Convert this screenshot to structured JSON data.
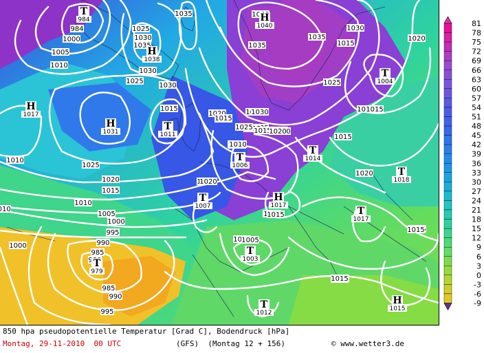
{
  "map": {
    "isobars": [
      {
        "label": "984"
      },
      {
        "label": "1000"
      },
      {
        "label": "1005"
      },
      {
        "label": "1010"
      },
      {
        "label": "1035"
      },
      {
        "label": "1025"
      },
      {
        "label": "1030"
      },
      {
        "label": "1035"
      },
      {
        "label": "1030"
      },
      {
        "label": "1040"
      },
      {
        "label": "1035"
      },
      {
        "label": "1035"
      },
      {
        "label": "1030"
      },
      {
        "label": "1020"
      },
      {
        "label": "1015"
      },
      {
        "label": "1025"
      },
      {
        "label": "1025"
      },
      {
        "label": "1030"
      },
      {
        "label": "1015"
      },
      {
        "label": "1020"
      },
      {
        "label": "1015"
      },
      {
        "label": "1030"
      },
      {
        "label": "1025"
      },
      {
        "label": "1020"
      },
      {
        "label": "1015"
      },
      {
        "label": "1010"
      },
      {
        "label": "1015"
      },
      {
        "label": "1010"
      },
      {
        "label": "1025"
      },
      {
        "label": "1020"
      },
      {
        "label": "1015"
      },
      {
        "label": "1010"
      },
      {
        "label": "1005"
      },
      {
        "label": "1000"
      },
      {
        "label": "995"
      },
      {
        "label": "990"
      },
      {
        "label": "985"
      },
      {
        "label": "980"
      },
      {
        "label": "985"
      },
      {
        "label": "990"
      },
      {
        "label": "995"
      },
      {
        "label": "1000"
      },
      {
        "label": "1010"
      },
      {
        "label": "1010"
      },
      {
        "label": "1015"
      },
      {
        "label": "1005"
      },
      {
        "label": "1015"
      },
      {
        "label": "1015"
      },
      {
        "label": "1020"
      },
      {
        "label": "1015"
      },
      {
        "label": "1015"
      },
      {
        "label": "1015"
      },
      {
        "label": "1010"
      },
      {
        "label": "1020"
      },
      {
        "label": "1015"
      },
      {
        "label": "1005"
      },
      {
        "label": "1020"
      },
      {
        "label": "1015"
      },
      {
        "label": "1015"
      },
      {
        "label": "1015"
      },
      {
        "label": "1025"
      },
      {
        "label": "1015"
      },
      {
        "label": "1020"
      },
      {
        "label": "1010"
      },
      {
        "label": "1015"
      },
      {
        "label": "1030"
      }
    ],
    "pressure_systems": [
      {
        "type": "T",
        "value": "984"
      },
      {
        "type": "H",
        "value": "1038"
      },
      {
        "type": "H",
        "value": "1040"
      },
      {
        "type": "H",
        "value": "1017"
      },
      {
        "type": "H",
        "value": "1031"
      },
      {
        "type": "T",
        "value": "1011"
      },
      {
        "type": "T",
        "value": "1004"
      },
      {
        "type": "T",
        "value": "1014"
      },
      {
        "type": "T",
        "value": "1006"
      },
      {
        "type": "T",
        "value": "1007"
      },
      {
        "type": "H",
        "value": "1017"
      },
      {
        "type": "T",
        "value": "1018"
      },
      {
        "type": "T",
        "value": "1017"
      },
      {
        "type": "T",
        "value": "979"
      },
      {
        "type": "T",
        "value": "1003"
      },
      {
        "type": "T",
        "value": "1012"
      },
      {
        "type": "H",
        "value": "1015"
      }
    ]
  },
  "colorbar": {
    "labels": [
      "81",
      "78",
      "75",
      "72",
      "69",
      "66",
      "63",
      "60",
      "57",
      "54",
      "51",
      "48",
      "45",
      "42",
      "39",
      "36",
      "33",
      "30",
      "27",
      "24",
      "21",
      "18",
      "15",
      "12",
      "9",
      "6",
      "3",
      "0",
      "-3",
      "-6",
      "-9"
    ],
    "colors": [
      "#e8109a",
      "#d81fa8",
      "#c42db6",
      "#b03bc4",
      "#9c49d2",
      "#8a4fd8",
      "#7c55df",
      "#6c57e2",
      "#5a5ae5",
      "#4a5de8",
      "#4063ea",
      "#3869ec",
      "#2f74ed",
      "#2880ee",
      "#218cec",
      "#1b98e8",
      "#18a4e2",
      "#17b0da",
      "#18bccf",
      "#1cc6c1",
      "#23cdb1",
      "#2cd3a0",
      "#3ad88d",
      "#4bdb78",
      "#60dd62",
      "#7bdd4c",
      "#96db3c",
      "#b2d630",
      "#ccd029",
      "#e2c824",
      "#f0bd22"
    ],
    "arrow_colors": [
      "#ea2fa3",
      "#6a2c8a"
    ]
  },
  "footer": {
    "line1": "850 hpa pseudopotentielle Temperatur [Grad C], Bodendruck [hPa]",
    "line2_date": "Montag, 29-11-2010  00 UTC",
    "line2_model": "(GFS)  (Montag 12 + 156)",
    "credit": "© www.wetter3.de"
  }
}
